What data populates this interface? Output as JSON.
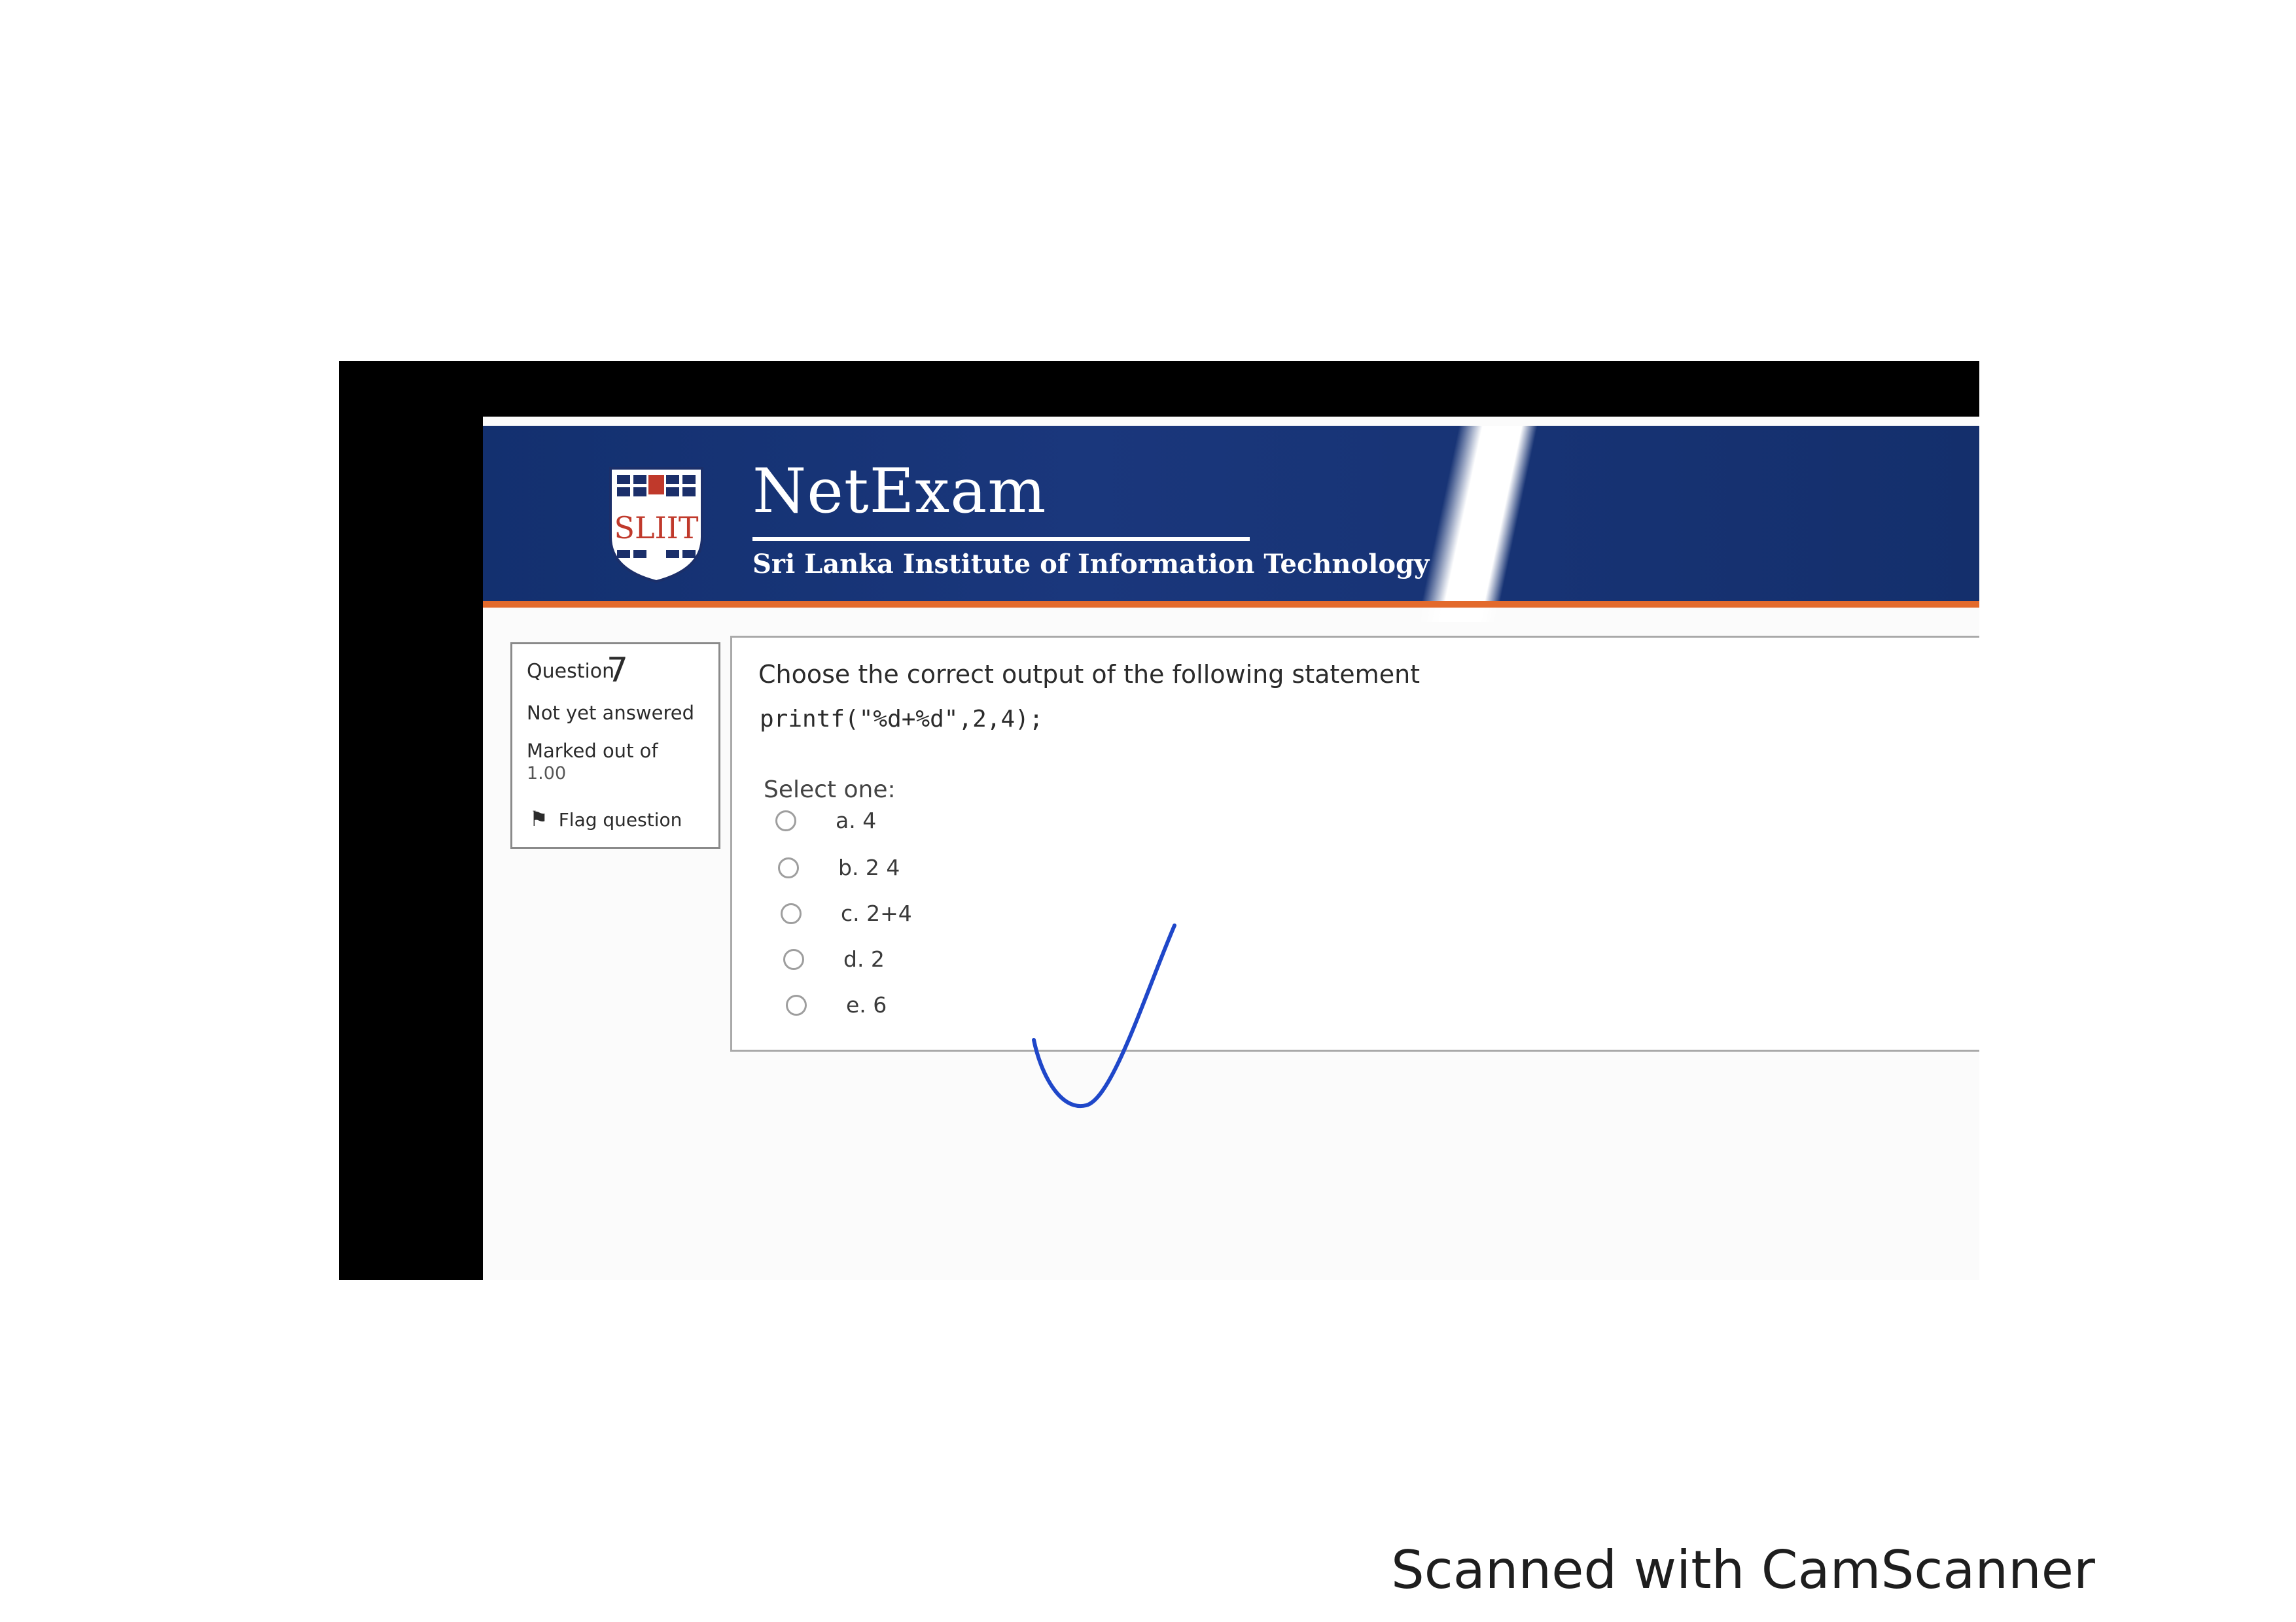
{
  "header": {
    "app_title": "NetExam",
    "subtitle": "Sri Lanka Institute of Information Technology",
    "logo_text": "SLIIT"
  },
  "question_info": {
    "label": "Question",
    "number": "7",
    "state": "Not yet answered",
    "grade_label": "Marked out of",
    "grade_value": "1.00",
    "flag_label": "Flag question"
  },
  "question": {
    "prompt": "Choose the correct output of the following statement",
    "code": "printf(\"%d+%d\",2,4);",
    "select_label": "Select one:",
    "options": [
      {
        "label": "a. 4"
      },
      {
        "label": "b. 2 4"
      },
      {
        "label": "c. 2+4"
      },
      {
        "label": "d. 2"
      },
      {
        "label": "e. 6"
      }
    ]
  },
  "scan_footer": "Scanned with CamScanner",
  "colors": {
    "header_blue": "#13306f",
    "header_orange": "#e36a2c",
    "checkmark_blue": "#1f47c9"
  }
}
